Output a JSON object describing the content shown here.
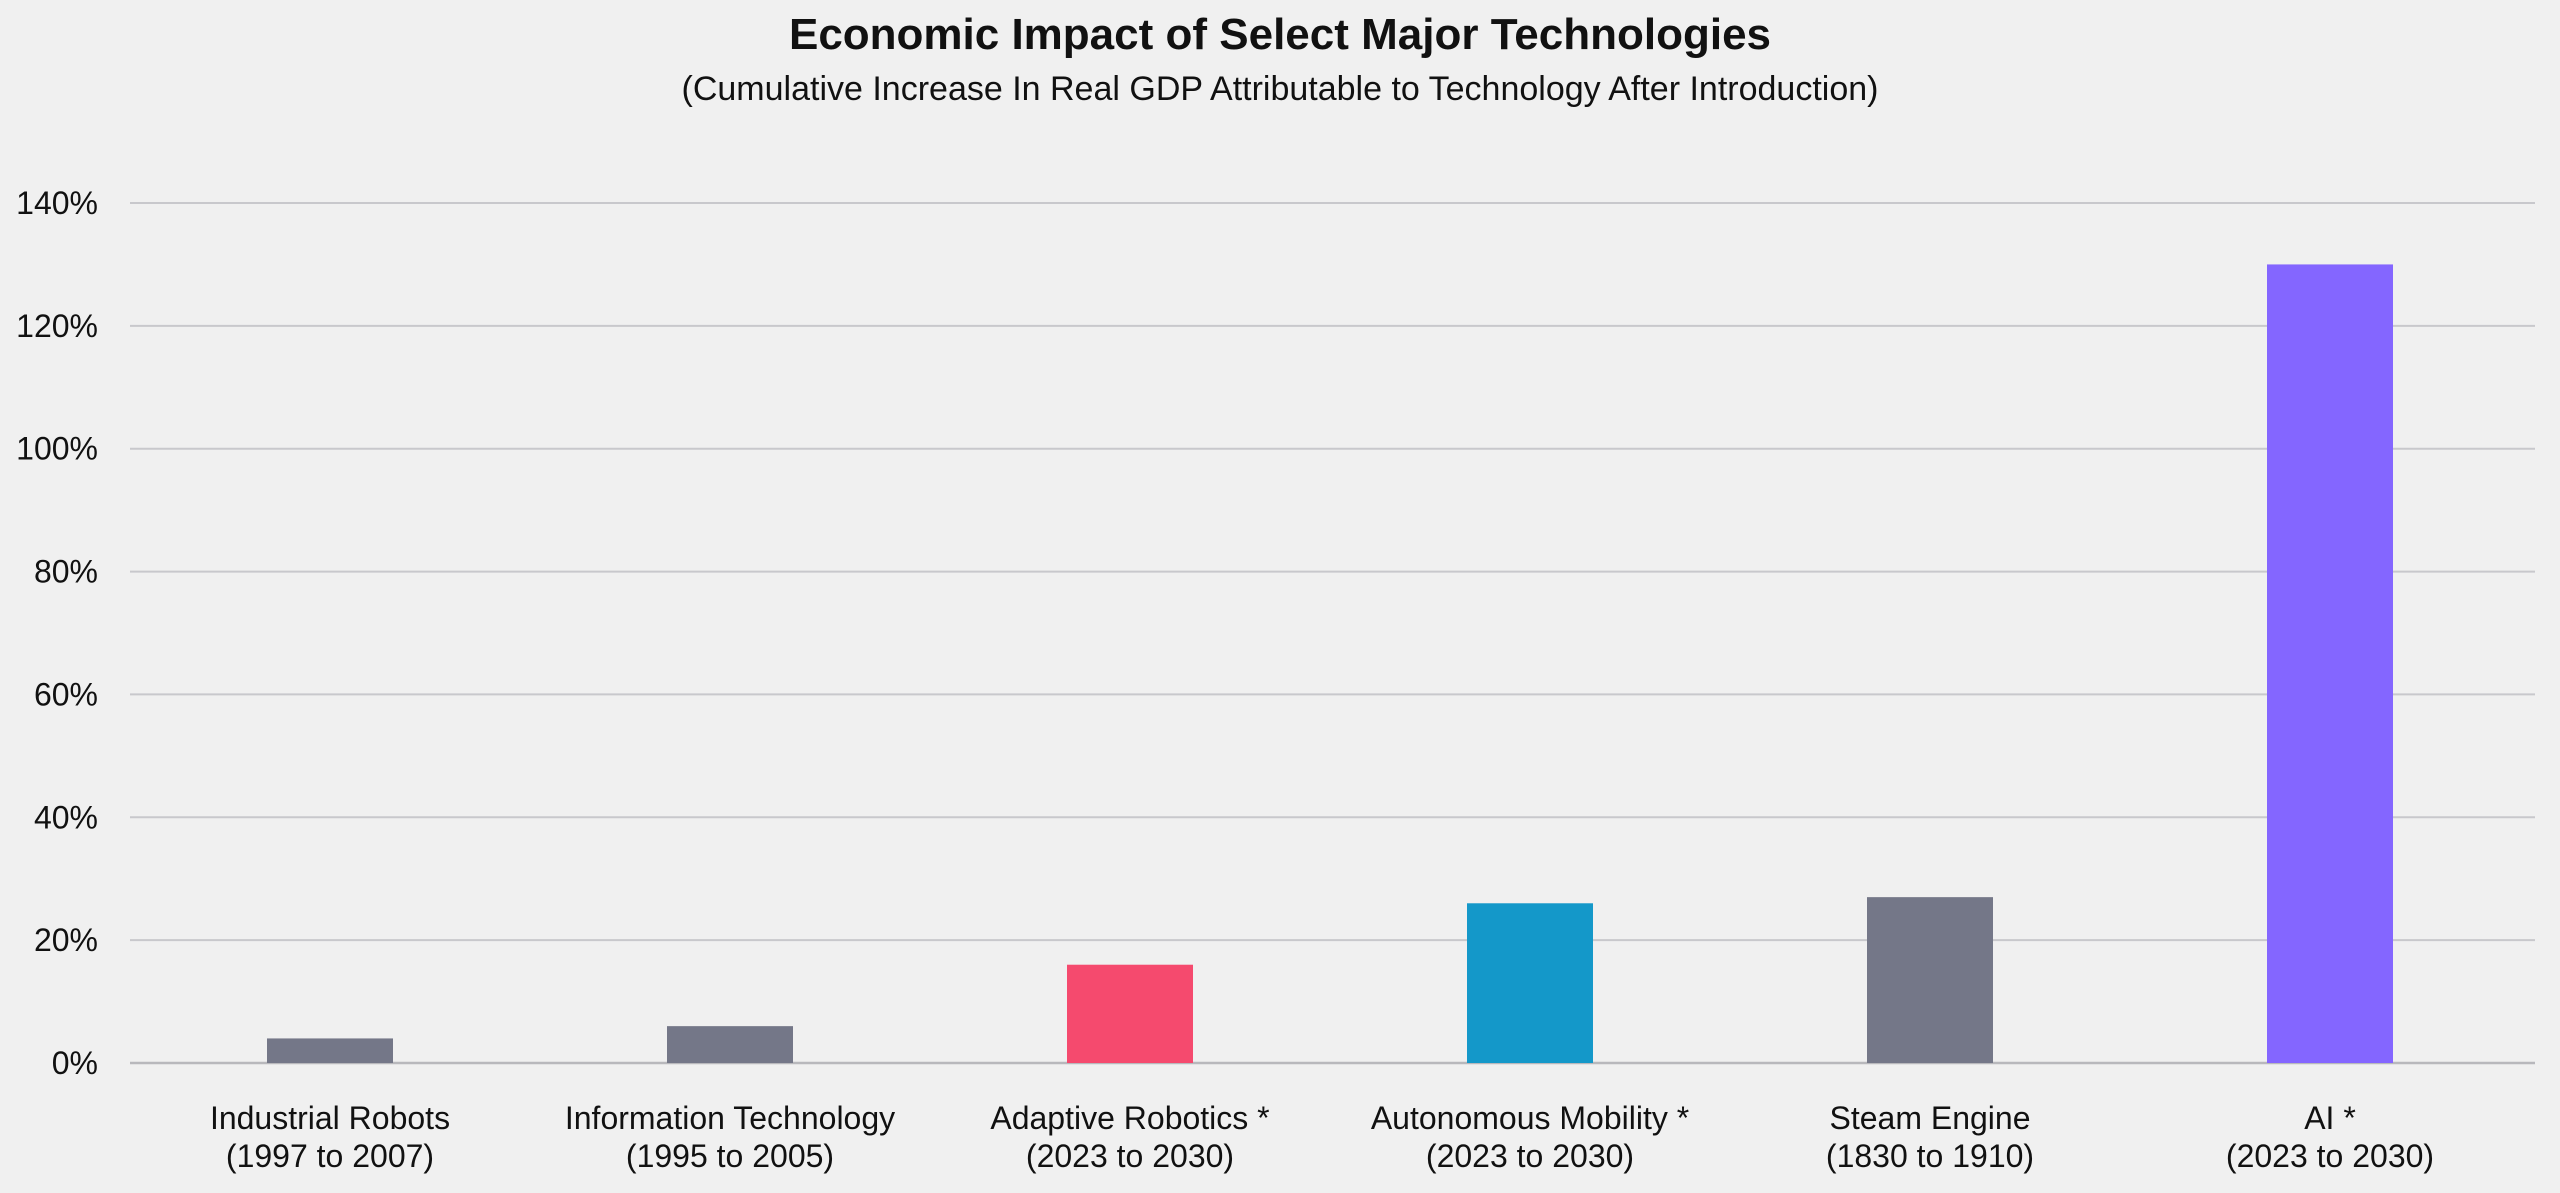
{
  "chart_data": {
    "type": "bar",
    "title": "Economic Impact of Select Major Technologies",
    "subtitle": "(Cumulative Increase In Real GDP Attributable to Technology After Introduction)",
    "xlabel": "",
    "ylabel": "",
    "ylim": [
      0,
      140
    ],
    "yticks": [
      0,
      20,
      40,
      60,
      80,
      100,
      120,
      140
    ],
    "ytick_labels": [
      "0%",
      "20%",
      "40%",
      "60%",
      "80%",
      "100%",
      "120%",
      "140%"
    ],
    "grid": true,
    "legend": "none",
    "categories": [
      {
        "line1": "Industrial Robots",
        "line2": "(1997 to 2007)"
      },
      {
        "line1": "Information Technology",
        "line2": "(1995 to 2005)"
      },
      {
        "line1": "Adaptive Robotics *",
        "line2": "(2023 to 2030)"
      },
      {
        "line1": "Autonomous Mobility  *",
        "line2": "(2023 to 2030)"
      },
      {
        "line1": "Steam Engine",
        "line2": "(1830 to 1910)"
      },
      {
        "line1": "AI *",
        "line2": "(2023 to 2030)"
      }
    ],
    "values": [
      4,
      6,
      16,
      26,
      27,
      130
    ],
    "bar_colors": [
      "#747788",
      "#747788",
      "#f54a6e",
      "#1498c9",
      "#747788",
      "#8466ff"
    ]
  },
  "colors": {
    "background": "#f0f0f0",
    "gridline": "#c8c8cc",
    "baseline": "#b8b8bc"
  }
}
